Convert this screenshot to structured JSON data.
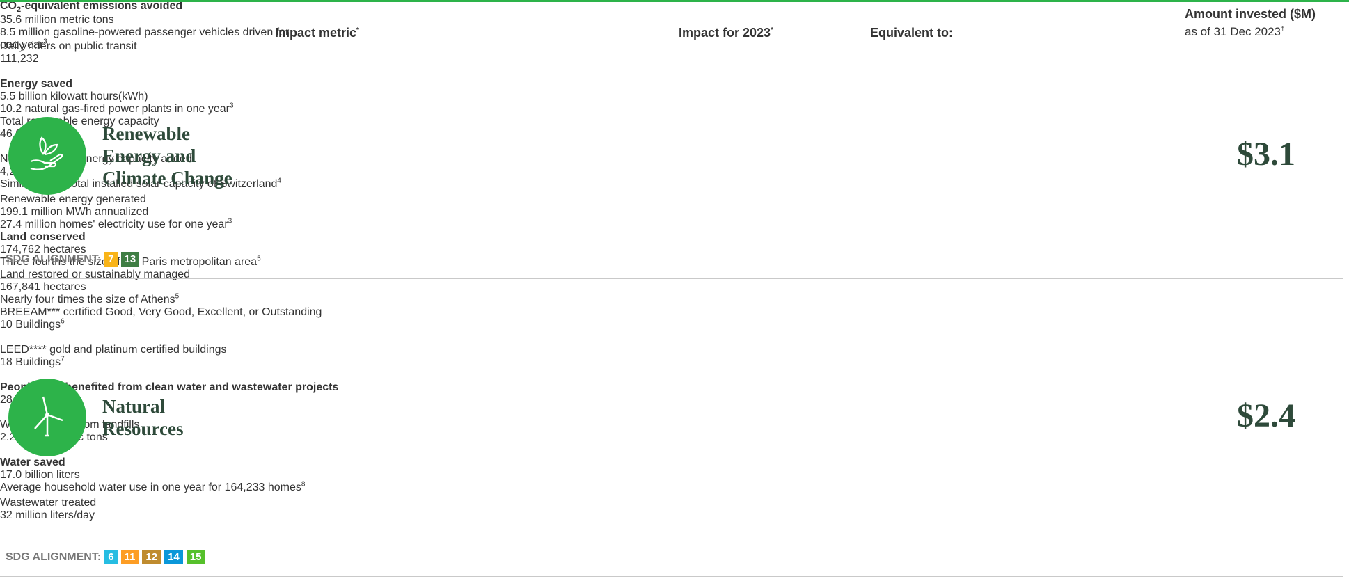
{
  "header": {
    "col_metric": "Impact metric",
    "col_metric_mark": "*",
    "col_impact": "Impact for 2023",
    "col_impact_mark": "*",
    "col_equiv": "Equivalent to:",
    "amount_title": "Amount invested ($M)",
    "amount_sub": "as of 31 Dec 2023",
    "amount_sub_mark": "†"
  },
  "sections": [
    {
      "title": [
        "Renewable",
        "Energy and",
        "Climate Change"
      ],
      "amount": "$3.1",
      "sdg_label": "SDG ALIGNMENT:",
      "sdgs": [
        {
          "label": "7",
          "color": "#f9b418"
        },
        {
          "label": "13",
          "color": "#3f7e44"
        }
      ],
      "rows": [
        {
          "metric": "CO",
          "metric_sub": "2",
          "metric_rest": "-equivalent emissions avoided",
          "bold": true,
          "impact": "35.6 million metric tons",
          "equivalent": "8.5 million gasoline-powered passenger vehicles driven for one year",
          "equivalent_note": "3"
        },
        {
          "metric": "Daily riders on public transit",
          "bold": false,
          "impact": "111,232"
        },
        {
          "metric": "Energy saved",
          "bold": true,
          "impact": "5.5 billion kilowatt hours(kWh)",
          "equivalent": "10.2 natural gas-fired power plants in one year",
          "equivalent_note": "3"
        },
        {
          "metric": "Total renewable energy capacity",
          "bold": false,
          "impact": "46,019 MW"
        },
        {
          "metric": "New renewable energy capacity added",
          "bold": false,
          "impact": "4,244 MW",
          "equivalent": "Similar to the total installed solar capacity of Switzerland",
          "equivalent_note": "4"
        },
        {
          "metric": "Renewable energy generated",
          "bold": false,
          "impact": "199.1 million MWh annualized",
          "equivalent": "27.4 million homes' electricity use for one year",
          "equivalent_note": "3"
        }
      ]
    },
    {
      "title": [
        "Natural",
        "Resources"
      ],
      "amount": "$2.4",
      "sdg_label": "SDG ALIGNMENT:",
      "sdgs": [
        {
          "label": "6",
          "color": "#26bde2"
        },
        {
          "label": "11",
          "color": "#fd9d24"
        },
        {
          "label": "12",
          "color": "#bf8b2e"
        },
        {
          "label": "14",
          "color": "#0a97d9"
        },
        {
          "label": "15",
          "color": "#56c02b"
        }
      ],
      "rows": [
        {
          "metric": "Land conserved",
          "bold": true,
          "impact": "174,762 hectares",
          "equivalent": "Three fourths the size of the Paris metropolitan area",
          "equivalent_note": "5"
        },
        {
          "metric": "Land restored or sustainably managed",
          "bold": false,
          "impact": "167,841 hectares",
          "equivalent": "Nearly four times the size of Athens",
          "equivalent_note": "5"
        },
        {
          "metric": "BREEAM*** certified Good, Very Good, Excellent, or Outstanding",
          "bold": false,
          "impact": "10 Buildings",
          "impact_note": "6"
        },
        {
          "metric": "LEED**** gold and platinum certified buildings",
          "bold": false,
          "impact": "18 Buildings",
          "impact_note": "7"
        },
        {
          "metric": "People who benefited from clean water and wastewater projects",
          "bold": true,
          "impact": "28,254"
        },
        {
          "metric": "Waste diverted from landfills",
          "bold": false,
          "impact": "2.2 million metric tons"
        },
        {
          "metric": "Water saved",
          "bold": true,
          "impact": "17.0 billion liters",
          "equivalent": "Average household water use in one year for 164,233 homes",
          "equivalent_note": "8"
        },
        {
          "metric": "Wastewater treated",
          "bold": false,
          "impact": "32 million liters/day"
        }
      ]
    }
  ]
}
